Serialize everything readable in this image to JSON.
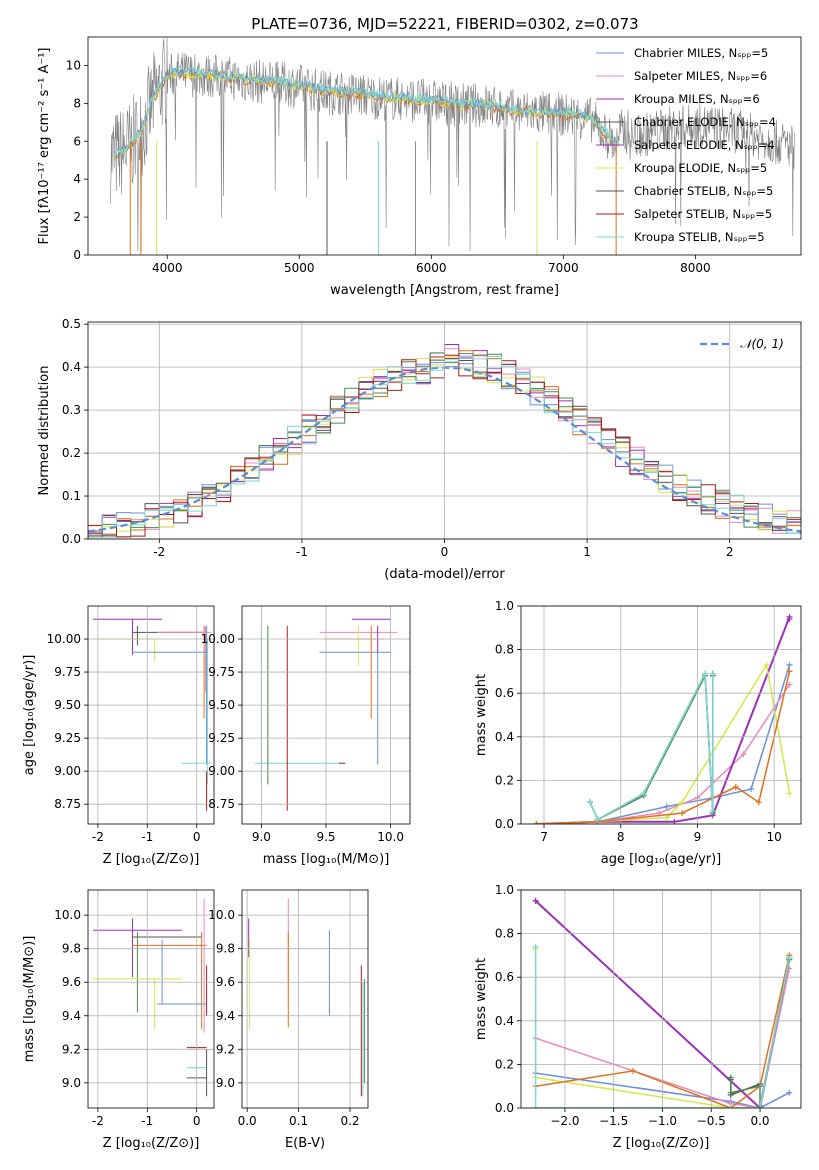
{
  "title": "PLATE=0736, MJD=52221, FIBERID=0302, z=0.073",
  "colors": [
    "#6a8fd4",
    "#e88ac0",
    "#9b30b8",
    "#d4e84a",
    "#e07020",
    "#8a8a8a",
    "#555555",
    "#b01a1a",
    "#7fd6d6",
    "#4a8a4a"
  ],
  "chart_data": [
    {
      "id": "spectrum",
      "type": "line",
      "xlabel": "wavelength [Angstrom, rest frame]",
      "ylabel": "Flux [fλ10⁻¹⁷ erg cm⁻² s⁻¹ A⁻¹]",
      "xlim": [
        3400,
        8800
      ],
      "ylim": [
        0,
        11.5
      ],
      "xticks": [
        4000,
        5000,
        6000,
        7000,
        8000
      ],
      "yticks": [
        0,
        2,
        4,
        6,
        8,
        10
      ],
      "legend_position": "top-right",
      "legend": [
        "Chabrier MILES, Nₛₚₚ=5",
        "Salpeter MILES, Nₛₚₚ=6",
        "Kroupa MILES, Nₛₚₚ=6",
        "Chabrier ELODIE, Nₛₚₚ=4",
        "Salpeter ELODIE, Nₛₚₚ=4",
        "Kroupa ELODIE, Nₛₚₚ=5",
        "Chabrier STELIB, Nₛₚₚ=5",
        "Salpeter STELIB, Nₛₚₚ=5",
        "Kroupa STELIB, Nₛₚₚ=5"
      ],
      "model_curve": {
        "x": [
          3600,
          3700,
          3800,
          3900,
          4000,
          4100,
          4200,
          4400,
          4600,
          4800,
          5000,
          5200,
          5400,
          5600,
          5800,
          6000,
          6200,
          6400,
          6600,
          6800,
          7000,
          7200,
          7400
        ],
        "y": [
          5.2,
          5.6,
          6.4,
          8.3,
          9.4,
          9.6,
          9.5,
          9.4,
          9.2,
          9.1,
          8.9,
          8.6,
          8.5,
          8.3,
          8.2,
          8.1,
          7.9,
          7.9,
          7.6,
          7.5,
          7.4,
          7.2,
          5.8
        ]
      }
    },
    {
      "id": "residuals",
      "type": "line",
      "xlabel": "(data-model)/error",
      "ylabel": "Normed distribution",
      "xlim": [
        -2.5,
        2.5
      ],
      "ylim": [
        0,
        0.505
      ],
      "xticks": [
        -2,
        -1,
        0,
        1,
        2
      ],
      "yticks": [
        0.0,
        0.1,
        0.2,
        0.3,
        0.4,
        0.5
      ],
      "legend": [
        "𝒩(0, 1)"
      ],
      "legend_position": "top-right",
      "gaussian": {
        "mu": 0,
        "sigma": 1
      }
    },
    {
      "id": "age-vs-z",
      "type": "scatter",
      "xlabel": "Z [log₁₀(Z/Z⊙)]",
      "ylabel": "age  [log₁₀(age/yr)]",
      "xlim": [
        -2.2,
        0.35
      ],
      "ylim": [
        8.6,
        10.25
      ],
      "xticks": [
        -2,
        -1,
        0
      ],
      "yticks": [
        8.75,
        9.0,
        9.25,
        9.5,
        9.75,
        10.0
      ]
    },
    {
      "id": "age-vs-mass",
      "type": "scatter",
      "xlabel": "mass [log₁₀(M/M⊙)]",
      "xlim": [
        8.85,
        10.15
      ],
      "ylim": [
        8.6,
        10.25
      ],
      "xticks": [
        9.0,
        9.5,
        10.0
      ],
      "yticks": [
        8.75,
        9.0,
        9.25,
        9.5,
        9.75,
        10.0
      ]
    },
    {
      "id": "massweight-vs-age",
      "type": "line",
      "xlabel": "age  [log₁₀(age/yr)]",
      "ylabel": "mass weight",
      "xlim": [
        6.7,
        10.35
      ],
      "ylim": [
        0,
        1.0
      ],
      "xticks": [
        7,
        8,
        9,
        10
      ],
      "yticks": [
        0.0,
        0.2,
        0.4,
        0.6,
        0.8,
        1.0
      ],
      "series": [
        {
          "x": [
            6.9,
            7.7,
            8.6,
            9.2,
            9.7,
            10.2
          ],
          "y": [
            0.0,
            0.01,
            0.08,
            0.12,
            0.16,
            0.73
          ]
        },
        {
          "x": [
            6.9,
            7.7,
            8.5,
            9.0,
            9.6,
            10.2
          ],
          "y": [
            0.0,
            0.01,
            0.05,
            0.12,
            0.32,
            0.64
          ]
        },
        {
          "x": [
            6.9,
            7.7,
            8.7,
            9.2,
            10.2,
            10.2
          ],
          "y": [
            0.0,
            0.01,
            0.01,
            0.04,
            0.95,
            0.94
          ]
        },
        {
          "x": [
            6.9,
            7.7,
            8.6,
            8.8,
            9.9,
            10.2
          ],
          "y": [
            0.0,
            0.01,
            0.03,
            0.1,
            0.73,
            0.14
          ]
        },
        {
          "x": [
            6.9,
            7.7,
            8.8,
            9.5,
            9.8,
            10.2
          ],
          "y": [
            0.0,
            0.01,
            0.05,
            0.17,
            0.1,
            0.7
          ]
        },
        {
          "x": [
            7.6,
            7.7,
            8.3,
            9.1,
            9.2,
            9.2
          ],
          "y": [
            0.1,
            0.02,
            0.14,
            0.69,
            0.06,
            0.69
          ]
        },
        {
          "x": [
            7.6,
            7.7,
            8.3,
            9.1,
            9.2,
            9.2
          ],
          "y": [
            0.1,
            0.02,
            0.13,
            0.68,
            0.05,
            0.68
          ]
        },
        {
          "x": [
            7.6,
            7.7,
            8.3,
            9.1,
            9.2,
            9.2
          ],
          "y": [
            0.1,
            0.02,
            0.14,
            0.69,
            0.06,
            0.69
          ]
        }
      ]
    },
    {
      "id": "mass-vs-z",
      "type": "scatter",
      "xlabel": "Z [log₁₀(Z/Z⊙)]",
      "ylabel": "mass [log₁₀(M/M⊙)]",
      "xlim": [
        -2.2,
        0.35
      ],
      "ylim": [
        8.85,
        10.15
      ],
      "xticks": [
        -2,
        -1,
        0
      ],
      "yticks": [
        9.0,
        9.2,
        9.4,
        9.6,
        9.8,
        10.0
      ]
    },
    {
      "id": "mass-vs-ebv",
      "type": "scatter",
      "xlabel": "E(B-V)",
      "xlim": [
        -0.01,
        0.235
      ],
      "ylim": [
        8.85,
        10.15
      ],
      "xticks": [
        0.0,
        0.1,
        0.2
      ],
      "yticks": [
        9.0,
        9.2,
        9.4,
        9.6,
        9.8,
        10.0
      ]
    },
    {
      "id": "massweight-vs-z",
      "type": "line",
      "xlabel": "Z [log₁₀(Z/Z⊙)]",
      "ylabel": "mass weight",
      "xlim": [
        -2.45,
        0.42
      ],
      "ylim": [
        0,
        1.0
      ],
      "xticks": [
        -2.0,
        -1.5,
        -1.0,
        -0.5,
        0.0
      ],
      "yticks": [
        0.0,
        0.2,
        0.4,
        0.6,
        0.8,
        1.0
      ],
      "series": [
        {
          "x": [
            -2.3,
            -0.3,
            0.0,
            0.3
          ],
          "y": [
            0.16,
            0.03,
            0.0,
            0.07
          ]
        },
        {
          "x": [
            -2.3,
            -0.3,
            0.0,
            0.3
          ],
          "y": [
            0.32,
            0.02,
            0.0,
            0.64
          ]
        },
        {
          "x": [
            -2.3,
            -2.3,
            0.0,
            0.3
          ],
          "y": [
            0.95,
            0.95,
            0.0,
            0.69
          ]
        },
        {
          "x": [
            -2.3,
            -2.3,
            -0.3,
            0.0,
            0.3
          ],
          "y": [
            0.73,
            0.14,
            0.0,
            0.0,
            0.7
          ]
        },
        {
          "x": [
            -2.3,
            -1.3,
            -0.3,
            0.0,
            0.3
          ],
          "y": [
            0.1,
            0.17,
            0.0,
            0.1,
            0.7
          ]
        },
        {
          "x": [
            -0.3,
            -0.3,
            0.0,
            0.0,
            0.3
          ],
          "y": [
            0.13,
            0.06,
            0.11,
            0.0,
            0.69
          ]
        },
        {
          "x": [
            -0.3,
            -0.3,
            0.0,
            0.0,
            0.3
          ],
          "y": [
            0.14,
            0.07,
            0.1,
            0.01,
            0.68
          ]
        },
        {
          "x": [
            -2.3,
            -2.3,
            -0.3,
            0.0,
            0.3
          ],
          "y": [
            0.74,
            0.0,
            0.0,
            0.0,
            0.69
          ]
        }
      ]
    }
  ]
}
